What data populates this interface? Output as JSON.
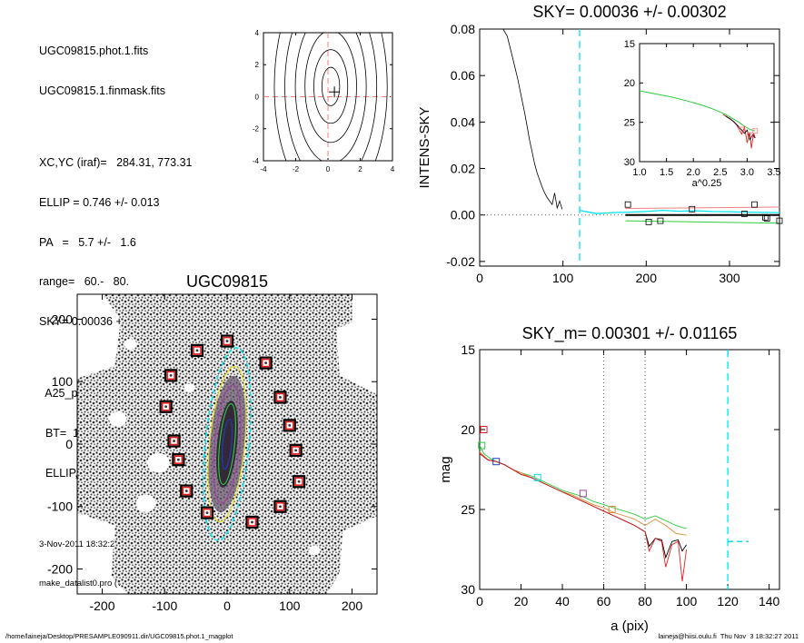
{
  "info": {
    "lines": [
      "UGC09815.phot.1.fits",
      "UGC09815.1.finmask.fits",
      "",
      "XC,YC (iraf)=   284.31, 773.31",
      "ELLIP = 0.746 +/- 0.013",
      "PA   =   5.7 +/-   1.6",
      "range=   60.-   80.",
      "SKY= 0.00036 +/- 0.00302",
      "",
      "  A25_pix= 58.6   T= 7.8",
      "  BT=  15.62   MABS=-18.62",
      "  ELLIP, PA= 0.754     7.6"
    ],
    "date": "3-Nov-2011 18:32:27.00",
    "program": "make_datalist0.pro (version HS230610)"
  },
  "footer": {
    "left": "/home/laineja/Desktop/PRESAMPLE090911.dir/UGC09815.phot.1_magplot",
    "right": "laineja@hiisi.oulu.fi  Thu Nov  3 18:32:27 2011"
  },
  "colors": {
    "cyan": "#00e5ee",
    "pink": "#f08080",
    "green": "#2ecc40",
    "red": "#e02020",
    "blue": "#1f3fbf",
    "purple": "#a040a0",
    "orange": "#d88a30"
  },
  "chart_data": [
    {
      "id": "contour",
      "type": "contour",
      "title": "",
      "xlim": [
        -4,
        4
      ],
      "ylim": [
        -4,
        4
      ],
      "xticks": [
        -4,
        -2,
        0,
        2,
        4
      ],
      "yticks": [
        -4,
        -2,
        0,
        2,
        4
      ],
      "center": [
        0.4,
        0.3
      ],
      "levels": [
        {
          "a": 1.2,
          "b": 0.55
        },
        {
          "a": 2.3,
          "b": 1.05
        },
        {
          "a": 3.5,
          "b": 1.6
        },
        {
          "a": 4.8,
          "b": 2.2
        },
        {
          "a": 6.2,
          "b": 2.85
        },
        {
          "a": 7.6,
          "b": 3.5
        }
      ]
    },
    {
      "id": "sky",
      "type": "line",
      "title": "SKY= 0.00036 +/- 0.00302",
      "xlabel": "",
      "ylabel": "INTENS-SKY",
      "xlim": [
        0,
        360
      ],
      "ylim": [
        -0.022,
        0.08
      ],
      "xticks": [
        0,
        100,
        200,
        300
      ],
      "yticks": [
        -0.02,
        0.0,
        0.02,
        0.04,
        0.06,
        0.08
      ],
      "ytick_labels": [
        "-0.02",
        "0.00",
        "0.02",
        "0.04",
        "0.06",
        "0.08"
      ],
      "vline": 120,
      "profile": {
        "x": [
          28,
          33,
          38,
          42,
          46,
          50,
          54,
          57,
          60,
          63,
          66,
          69,
          72,
          75,
          78,
          81,
          84,
          87,
          90,
          93,
          96,
          99
        ],
        "y": [
          0.08,
          0.077,
          0.07,
          0.064,
          0.058,
          0.051,
          0.044,
          0.038,
          0.032,
          0.027,
          0.022,
          0.018,
          0.015,
          0.012,
          0.0095,
          0.0075,
          0.006,
          0.0045,
          0.0095,
          0.003,
          0.006,
          0.0025
        ]
      },
      "sky_cyan": {
        "x": [
          120,
          140,
          160,
          180,
          200,
          220,
          240,
          260,
          280,
          300,
          320,
          340,
          360
        ],
        "y": [
          0.002,
          0.0006,
          0.001,
          0.0012,
          0.0015,
          0.002,
          0.0016,
          0.0018,
          0.0015,
          0.0014,
          0.0012,
          0.0011,
          0.001
        ]
      },
      "sky_pink": {
        "x": [
          175,
          360
        ],
        "y": [
          0.0028,
          0.0034
        ]
      },
      "sky_green": {
        "x": [
          175,
          360
        ],
        "y": [
          -0.0025,
          -0.0035
        ]
      },
      "sky_black": {
        "x": [
          175,
          360
        ],
        "y": [
          0.0,
          0.0
        ]
      },
      "squares": {
        "x": [
          178,
          203,
          217,
          255,
          318,
          330,
          343,
          345,
          360
        ],
        "y": [
          0.0045,
          -0.003,
          -0.0025,
          0.0025,
          0.0005,
          0.0045,
          -0.001,
          -0.0015,
          -0.0025
        ]
      },
      "inset": {
        "xlabel": "a^0.25",
        "xlim": [
          1.0,
          3.5
        ],
        "ylim": [
          15,
          30
        ],
        "xticks": [
          1.0,
          1.5,
          2.0,
          2.5,
          3.0,
          3.5
        ],
        "yticks": [
          15,
          20,
          25,
          30
        ],
        "xtick_labels": [
          "1.0",
          "1.5",
          "2.0",
          "2.5",
          "3.0",
          "3.5"
        ],
        "green": {
          "x": [
            1.0,
            1.3,
            1.6,
            1.9,
            2.2,
            2.4,
            2.6,
            2.75,
            2.85,
            2.95,
            3.05,
            3.15
          ],
          "y": [
            21.0,
            21.4,
            21.8,
            22.3,
            22.9,
            23.4,
            24.0,
            24.6,
            25.0,
            25.5,
            25.9,
            26.1
          ]
        },
        "red": {
          "x": [
            2.55,
            2.7,
            2.8,
            2.9,
            2.95,
            3.0,
            3.05,
            3.08,
            3.12,
            3.15
          ],
          "y": [
            24.0,
            24.6,
            25.3,
            26.5,
            25.6,
            27.6,
            26.3,
            28.3,
            26.4,
            27.0
          ]
        },
        "black": {
          "x": [
            2.6,
            2.75,
            2.85,
            2.95,
            3.0,
            3.05,
            3.1,
            3.15
          ],
          "y": [
            24.2,
            24.9,
            25.6,
            26.4,
            26.0,
            27.2,
            26.6,
            27.0
          ]
        },
        "squares": {
          "x": [
            2.9,
            3.05,
            3.15
          ],
          "y": [
            25.9,
            26.6,
            26.1
          ]
        }
      }
    },
    {
      "id": "galaxy",
      "type": "image",
      "title": "UGC09815",
      "xlim": [
        -240,
        240
      ],
      "ylim": [
        -240,
        240
      ],
      "xticks": [
        -200,
        -100,
        0,
        100,
        200
      ],
      "yticks": [
        -200,
        -100,
        0,
        100,
        200
      ],
      "markers": [
        [
          -48,
          150
        ],
        [
          0,
          165
        ],
        [
          62,
          130
        ],
        [
          -90,
          110
        ],
        [
          -98,
          60
        ],
        [
          85,
          75
        ],
        [
          -85,
          5
        ],
        [
          100,
          30
        ],
        [
          -78,
          -25
        ],
        [
          110,
          -10
        ],
        [
          115,
          -60
        ],
        [
          -65,
          -75
        ],
        [
          85,
          -100
        ],
        [
          -32,
          -110
        ],
        [
          40,
          -125
        ]
      ],
      "ellipse_pa": 5.7,
      "ellipse_axes": [
        {
          "a": 155,
          "b": 35,
          "color": "cyan",
          "dash": true
        },
        {
          "a": 125,
          "b": 28,
          "color": "yellow",
          "dash": false
        },
        {
          "a": 95,
          "b": 20,
          "color": "purple",
          "dash": false
        },
        {
          "a": 65,
          "b": 12,
          "color": "green",
          "dash": false
        },
        {
          "a": 40,
          "b": 7,
          "color": "blue",
          "dash": false
        }
      ]
    },
    {
      "id": "mag",
      "type": "line",
      "title": "SKY_m=  0.00301 +/- 0.01165",
      "xlabel": "a (pix)",
      "ylabel": "mag",
      "xlim": [
        0,
        145
      ],
      "ylim": [
        15,
        30
      ],
      "xticks": [
        0,
        20,
        40,
        60,
        80,
        100,
        120,
        140
      ],
      "yticks": [
        15,
        20,
        25,
        30
      ],
      "vlines_dotted": [
        60,
        80
      ],
      "vline_cyan": 120,
      "sky_level_segment": {
        "x": [
          120,
          130
        ],
        "y": [
          27.0,
          27.0
        ]
      },
      "series": [
        {
          "name": "",
          "color": "green",
          "x": [
            0,
            2,
            5,
            8,
            12,
            16,
            20,
            25,
            30,
            35,
            40,
            45,
            50,
            55,
            60,
            65,
            70,
            75,
            80,
            85,
            90,
            95,
            100
          ],
          "y": [
            21.0,
            21.5,
            21.8,
            22.0,
            22.2,
            22.5,
            22.7,
            22.9,
            23.2,
            23.5,
            23.8,
            24.0,
            24.2,
            24.5,
            24.7,
            24.9,
            25.1,
            25.3,
            25.6,
            25.4,
            25.7,
            26.0,
            26.2
          ]
        },
        {
          "name": "",
          "color": "orange",
          "x": [
            0,
            4,
            8,
            12,
            16,
            20,
            25,
            30,
            35,
            40,
            45,
            50,
            55,
            60,
            65,
            70,
            75,
            80,
            85,
            90,
            95,
            100
          ],
          "y": [
            21.4,
            21.9,
            22.0,
            22.2,
            22.5,
            22.7,
            23.0,
            23.3,
            23.6,
            23.9,
            24.1,
            24.4,
            24.7,
            24.9,
            25.2,
            25.4,
            25.6,
            26.0,
            25.6,
            26.0,
            26.5,
            26.6
          ]
        },
        {
          "name": "",
          "color": "black",
          "x": [
            0,
            4,
            8,
            12,
            16,
            20,
            25,
            30,
            35,
            40,
            45,
            50,
            55,
            60,
            65,
            70,
            75,
            80,
            82,
            85,
            88,
            90,
            93,
            96,
            98,
            100
          ],
          "y": [
            21.5,
            21.9,
            22.0,
            22.2,
            22.5,
            22.8,
            23.0,
            23.3,
            23.6,
            23.9,
            24.2,
            24.5,
            24.8,
            25.1,
            25.4,
            25.7,
            26.0,
            26.4,
            27.3,
            26.8,
            26.9,
            28.0,
            27.0,
            26.9,
            27.6,
            27.2
          ]
        },
        {
          "name": "",
          "color": "red",
          "x": [
            0,
            4,
            8,
            12,
            16,
            20,
            25,
            30,
            35,
            40,
            45,
            50,
            55,
            60,
            65,
            70,
            75,
            80,
            82,
            85,
            88,
            90,
            93,
            96,
            98,
            100
          ],
          "y": [
            21.5,
            21.9,
            22.0,
            22.2,
            22.5,
            22.8,
            23.0,
            23.3,
            23.6,
            23.9,
            24.2,
            24.5,
            24.8,
            25.1,
            25.4,
            25.7,
            26.0,
            26.4,
            27.6,
            26.8,
            27.0,
            28.6,
            27.2,
            27.0,
            29.5,
            27.5
          ]
        }
      ],
      "squares": [
        {
          "x": 2,
          "y": 20.0,
          "color": "red"
        },
        {
          "x": 1,
          "y": 21.0,
          "color": "green"
        },
        {
          "x": 8,
          "y": 22.0,
          "color": "blue"
        },
        {
          "x": 28,
          "y": 23.0,
          "color": "cyan"
        },
        {
          "x": 50,
          "y": 24.0,
          "color": "purple"
        },
        {
          "x": 64,
          "y": 25.0,
          "color": "orange"
        }
      ]
    }
  ]
}
